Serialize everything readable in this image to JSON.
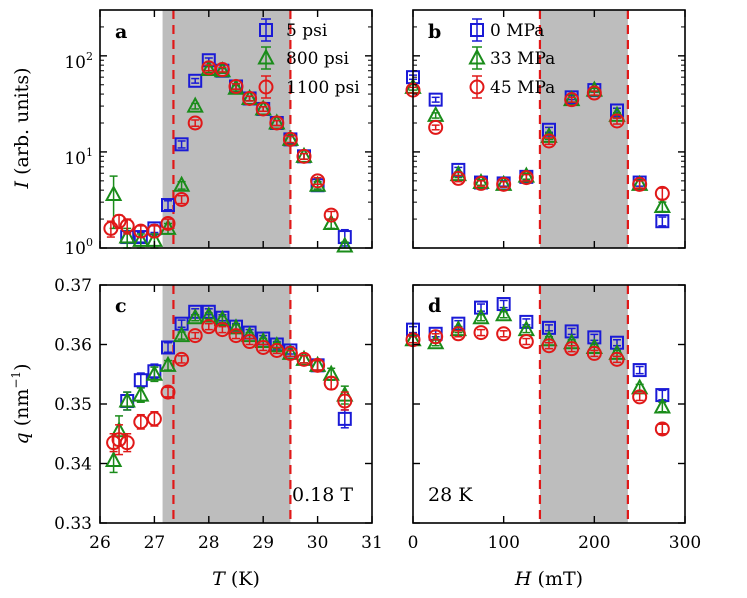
{
  "figure": {
    "annotations": {
      "field_c": "0.18 T",
      "temp_d": "28 K"
    }
  },
  "colors": {
    "blue": "#1a1ad6",
    "green": "#1a8c1a",
    "red": "#e01818",
    "shade": "#bdbdbd",
    "dash": "#e01818"
  },
  "chart_data": [
    {
      "id": "a",
      "type": "scatter",
      "panel_label": "a",
      "xlim": [
        26,
        31
      ],
      "ylim": [
        1,
        300
      ],
      "yscale": "log",
      "ylabel_italic": "I",
      "ylabel_rest": " (arb. units)",
      "xticks": [
        26,
        27,
        28,
        29,
        30,
        31
      ],
      "yticks": [
        {
          "value": 1,
          "base": "10",
          "exp": "0"
        },
        {
          "value": 10,
          "base": "10",
          "exp": "1"
        },
        {
          "value": 100,
          "base": "10",
          "exp": "2"
        }
      ],
      "shade": [
        27.15,
        29.5
      ],
      "dashes": [
        27.35,
        29.5
      ],
      "legend": [
        "5 psi",
        "800 psi",
        "1100 psi"
      ],
      "series": [
        {
          "name": "5 psi",
          "marker": "square",
          "color": "blue",
          "x": [
            26.5,
            26.75,
            27.0,
            27.25,
            27.5,
            27.75,
            28.0,
            28.25,
            28.5,
            28.75,
            29.0,
            29.25,
            29.5,
            29.75,
            30.0,
            30.5
          ],
          "y": [
            1.3,
            1.3,
            1.6,
            2.8,
            12,
            55,
            90,
            70,
            48,
            36,
            28,
            20,
            13.5,
            9,
            4.5,
            1.3
          ],
          "err": [
            0.15,
            0.15,
            0.15,
            0.3,
            1,
            3,
            5,
            4,
            3,
            2,
            1.5,
            1.2,
            1.2,
            0.6,
            0.4,
            0.25
          ]
        },
        {
          "name": "800 psi",
          "marker": "triangle",
          "color": "green",
          "x": [
            26.25,
            26.5,
            26.75,
            27.0,
            27.25,
            27.5,
            27.75,
            28.0,
            28.25,
            28.5,
            28.75,
            29.0,
            29.25,
            29.5,
            29.75,
            30.0,
            30.25,
            30.5
          ],
          "y": [
            3.6,
            1.3,
            1.2,
            1.2,
            1.6,
            4.5,
            30,
            72,
            70,
            46,
            36,
            28,
            20,
            13.5,
            9,
            4.5,
            1.8,
            1.05
          ],
          "err": [
            2.0,
            0.3,
            0.2,
            0.2,
            0.2,
            0.4,
            2,
            5,
            4,
            3,
            2,
            1.5,
            1.2,
            1,
            0.6,
            0.4,
            0.2,
            0.1
          ]
        },
        {
          "name": "1100 psi",
          "marker": "circle",
          "color": "red",
          "x": [
            26.2,
            26.35,
            26.5,
            26.75,
            27.0,
            27.25,
            27.5,
            27.75,
            28.0,
            28.25,
            28.5,
            28.75,
            29.0,
            29.25,
            29.5,
            29.75,
            30.0,
            30.25
          ],
          "y": [
            1.6,
            1.9,
            1.7,
            1.5,
            1.5,
            1.8,
            3.2,
            20,
            75,
            72,
            48,
            36,
            28,
            20,
            13.5,
            9,
            5,
            2.2
          ],
          "err": [
            0.3,
            0.3,
            0.3,
            0.2,
            0.2,
            0.2,
            0.3,
            1.5,
            5,
            4,
            3,
            2,
            1.5,
            1.2,
            1,
            0.6,
            0.4,
            0.2
          ]
        }
      ]
    },
    {
      "id": "b",
      "type": "scatter",
      "panel_label": "b",
      "xlim": [
        0,
        300
      ],
      "ylim": [
        1,
        300
      ],
      "yscale": "log",
      "xticks": [
        0,
        100,
        200,
        300
      ],
      "yticks": [
        {
          "value": 1
        },
        {
          "value": 10
        },
        {
          "value": 100
        }
      ],
      "shade": [
        140,
        237
      ],
      "dashes": [
        140,
        237
      ],
      "legend": [
        "0 MPa",
        "33 MPa",
        "45 MPa"
      ],
      "series": [
        {
          "name": "0 MPa",
          "marker": "square",
          "color": "blue",
          "x": [
            0,
            25,
            50,
            75,
            100,
            125,
            150,
            175,
            200,
            225,
            250,
            275
          ],
          "y": [
            60,
            35,
            6.5,
            4.8,
            4.7,
            5.5,
            17,
            37,
            44,
            27,
            4.8,
            1.9
          ],
          "err": [
            3,
            2,
            0.4,
            0.3,
            0.3,
            0.4,
            1,
            2,
            2,
            1.5,
            0.4,
            0.2
          ]
        },
        {
          "name": "33 MPa",
          "marker": "triangle",
          "color": "green",
          "x": [
            0,
            25,
            50,
            75,
            100,
            125,
            150,
            175,
            200,
            225,
            250,
            275
          ],
          "y": [
            47,
            24,
            5.8,
            4.8,
            4.6,
            5.6,
            14.5,
            35,
            44,
            24,
            4.6,
            2.7
          ],
          "err": [
            3,
            1.5,
            0.4,
            0.3,
            0.3,
            0.4,
            1,
            2,
            2,
            1.5,
            0.4,
            0.3
          ]
        },
        {
          "name": "45 MPa",
          "marker": "circle",
          "color": "red",
          "x": [
            0,
            25,
            50,
            75,
            100,
            125,
            150,
            175,
            200,
            225,
            250,
            275
          ],
          "y": [
            44,
            18,
            5.3,
            4.7,
            4.6,
            5.4,
            13,
            35,
            41,
            21,
            4.6,
            3.7
          ],
          "err": [
            3,
            1,
            0.4,
            0.3,
            0.3,
            0.4,
            1,
            2,
            2,
            1.5,
            0.4,
            0.5
          ]
        }
      ]
    },
    {
      "id": "c",
      "type": "scatter",
      "panel_label": "c",
      "xlim": [
        26,
        31
      ],
      "ylim": [
        0.33,
        0.37
      ],
      "ylabel_italic": "q",
      "ylabel_rest": " (nm",
      "ylabel_sup": "−1",
      "ylabel_end": ")",
      "xlabel_italic": "T",
      "xlabel_rest": " (K)",
      "xticks": [
        26,
        27,
        28,
        29,
        30,
        31
      ],
      "yticks": [
        0.33,
        0.34,
        0.35,
        0.36,
        0.37
      ],
      "shade": [
        27.15,
        29.5
      ],
      "dashes": [
        27.35,
        29.5
      ],
      "series": [
        {
          "name": "5 psi",
          "marker": "square",
          "color": "blue",
          "x": [
            26.5,
            26.75,
            27.0,
            27.25,
            27.5,
            27.75,
            28.0,
            28.25,
            28.5,
            28.75,
            29.0,
            29.25,
            29.5,
            30.0,
            30.5
          ],
          "y": [
            0.3505,
            0.354,
            0.3555,
            0.3595,
            0.3635,
            0.3655,
            0.3655,
            0.3645,
            0.363,
            0.362,
            0.361,
            0.36,
            0.359,
            0.3565,
            0.3475
          ],
          "err": [
            0.0015,
            0.0012,
            0.0012,
            0.0008,
            0.0006,
            0.0005,
            0.0005,
            0.0005,
            0.0005,
            0.0005,
            0.0005,
            0.0005,
            0.0006,
            0.0008,
            0.0015
          ]
        },
        {
          "name": "800 psi",
          "marker": "triangle",
          "color": "green",
          "x": [
            26.25,
            26.35,
            26.5,
            26.75,
            27.0,
            27.25,
            27.5,
            27.75,
            28.0,
            28.25,
            28.5,
            28.75,
            29.0,
            29.25,
            29.5,
            29.75,
            30.0,
            30.25,
            30.5
          ],
          "y": [
            0.3405,
            0.3455,
            0.3505,
            0.3515,
            0.355,
            0.3565,
            0.3615,
            0.3645,
            0.3648,
            0.3642,
            0.3628,
            0.3615,
            0.3605,
            0.3598,
            0.3585,
            0.3575,
            0.3565,
            0.355,
            0.3515
          ],
          "err": [
            0.002,
            0.0025,
            0.0015,
            0.0012,
            0.0012,
            0.0008,
            0.0006,
            0.0005,
            0.0005,
            0.0005,
            0.0005,
            0.0005,
            0.0005,
            0.0005,
            0.0005,
            0.0006,
            0.0008,
            0.001,
            0.0015
          ]
        },
        {
          "name": "1100 psi",
          "marker": "circle",
          "color": "red",
          "x": [
            26.25,
            26.35,
            26.5,
            26.75,
            27.0,
            27.25,
            27.5,
            27.75,
            28.0,
            28.25,
            28.5,
            28.75,
            29.0,
            29.25,
            29.5,
            29.75,
            30.0,
            30.25,
            30.5
          ],
          "y": [
            0.3435,
            0.344,
            0.3435,
            0.347,
            0.3475,
            0.352,
            0.3575,
            0.3615,
            0.363,
            0.3625,
            0.3615,
            0.3605,
            0.3595,
            0.359,
            0.3585,
            0.3575,
            0.3565,
            0.3535,
            0.3505
          ],
          "err": [
            0.0015,
            0.0025,
            0.0015,
            0.0012,
            0.0012,
            0.0008,
            0.0006,
            0.0005,
            0.0005,
            0.0005,
            0.0005,
            0.0005,
            0.0005,
            0.0005,
            0.0005,
            0.0006,
            0.0008,
            0.001,
            0.0015
          ]
        }
      ]
    },
    {
      "id": "d",
      "type": "scatter",
      "panel_label": "d",
      "xlim": [
        0,
        300
      ],
      "ylim": [
        0.33,
        0.37
      ],
      "xlabel_italic": "H",
      "xlabel_rest": " (mT)",
      "xticks": [
        0,
        100,
        200,
        300
      ],
      "yticks": [
        0.33,
        0.34,
        0.35,
        0.36,
        0.37
      ],
      "shade": [
        140,
        237
      ],
      "dashes": [
        140,
        237
      ],
      "series": [
        {
          "name": "0 MPa",
          "marker": "square",
          "color": "blue",
          "x": [
            0,
            25,
            50,
            75,
            100,
            125,
            150,
            175,
            200,
            225,
            250,
            275
          ],
          "y": [
            0.3625,
            0.3618,
            0.3635,
            0.3662,
            0.3668,
            0.3638,
            0.3628,
            0.3622,
            0.3612,
            0.3603,
            0.3557,
            0.3515
          ],
          "err": [
            0.0005,
            0.0005,
            0.0005,
            0.0006,
            0.0006,
            0.0005,
            0.0005,
            0.0005,
            0.0005,
            0.0005,
            0.0006,
            0.0008
          ]
        },
        {
          "name": "33 MPa",
          "marker": "triangle",
          "color": "green",
          "x": [
            0,
            25,
            50,
            75,
            100,
            125,
            150,
            175,
            200,
            225,
            250,
            275
          ],
          "y": [
            0.3608,
            0.3603,
            0.3625,
            0.3645,
            0.365,
            0.3625,
            0.3608,
            0.3603,
            0.3595,
            0.3585,
            0.3527,
            0.3495
          ],
          "err": [
            0.0005,
            0.0005,
            0.0005,
            0.0005,
            0.0005,
            0.0005,
            0.0005,
            0.0005,
            0.0005,
            0.0005,
            0.0006,
            0.0008
          ]
        },
        {
          "name": "45 MPa",
          "marker": "circle",
          "color": "red",
          "x": [
            0,
            25,
            50,
            75,
            100,
            125,
            150,
            175,
            200,
            225,
            250,
            275
          ],
          "y": [
            0.3608,
            0.3613,
            0.3618,
            0.362,
            0.3618,
            0.3605,
            0.3598,
            0.3593,
            0.3585,
            0.3575,
            0.3512,
            0.3458
          ],
          "err": [
            0.0005,
            0.0005,
            0.0005,
            0.0005,
            0.0005,
            0.0005,
            0.0005,
            0.0005,
            0.0005,
            0.0005,
            0.0006,
            0.0008
          ]
        }
      ]
    }
  ]
}
